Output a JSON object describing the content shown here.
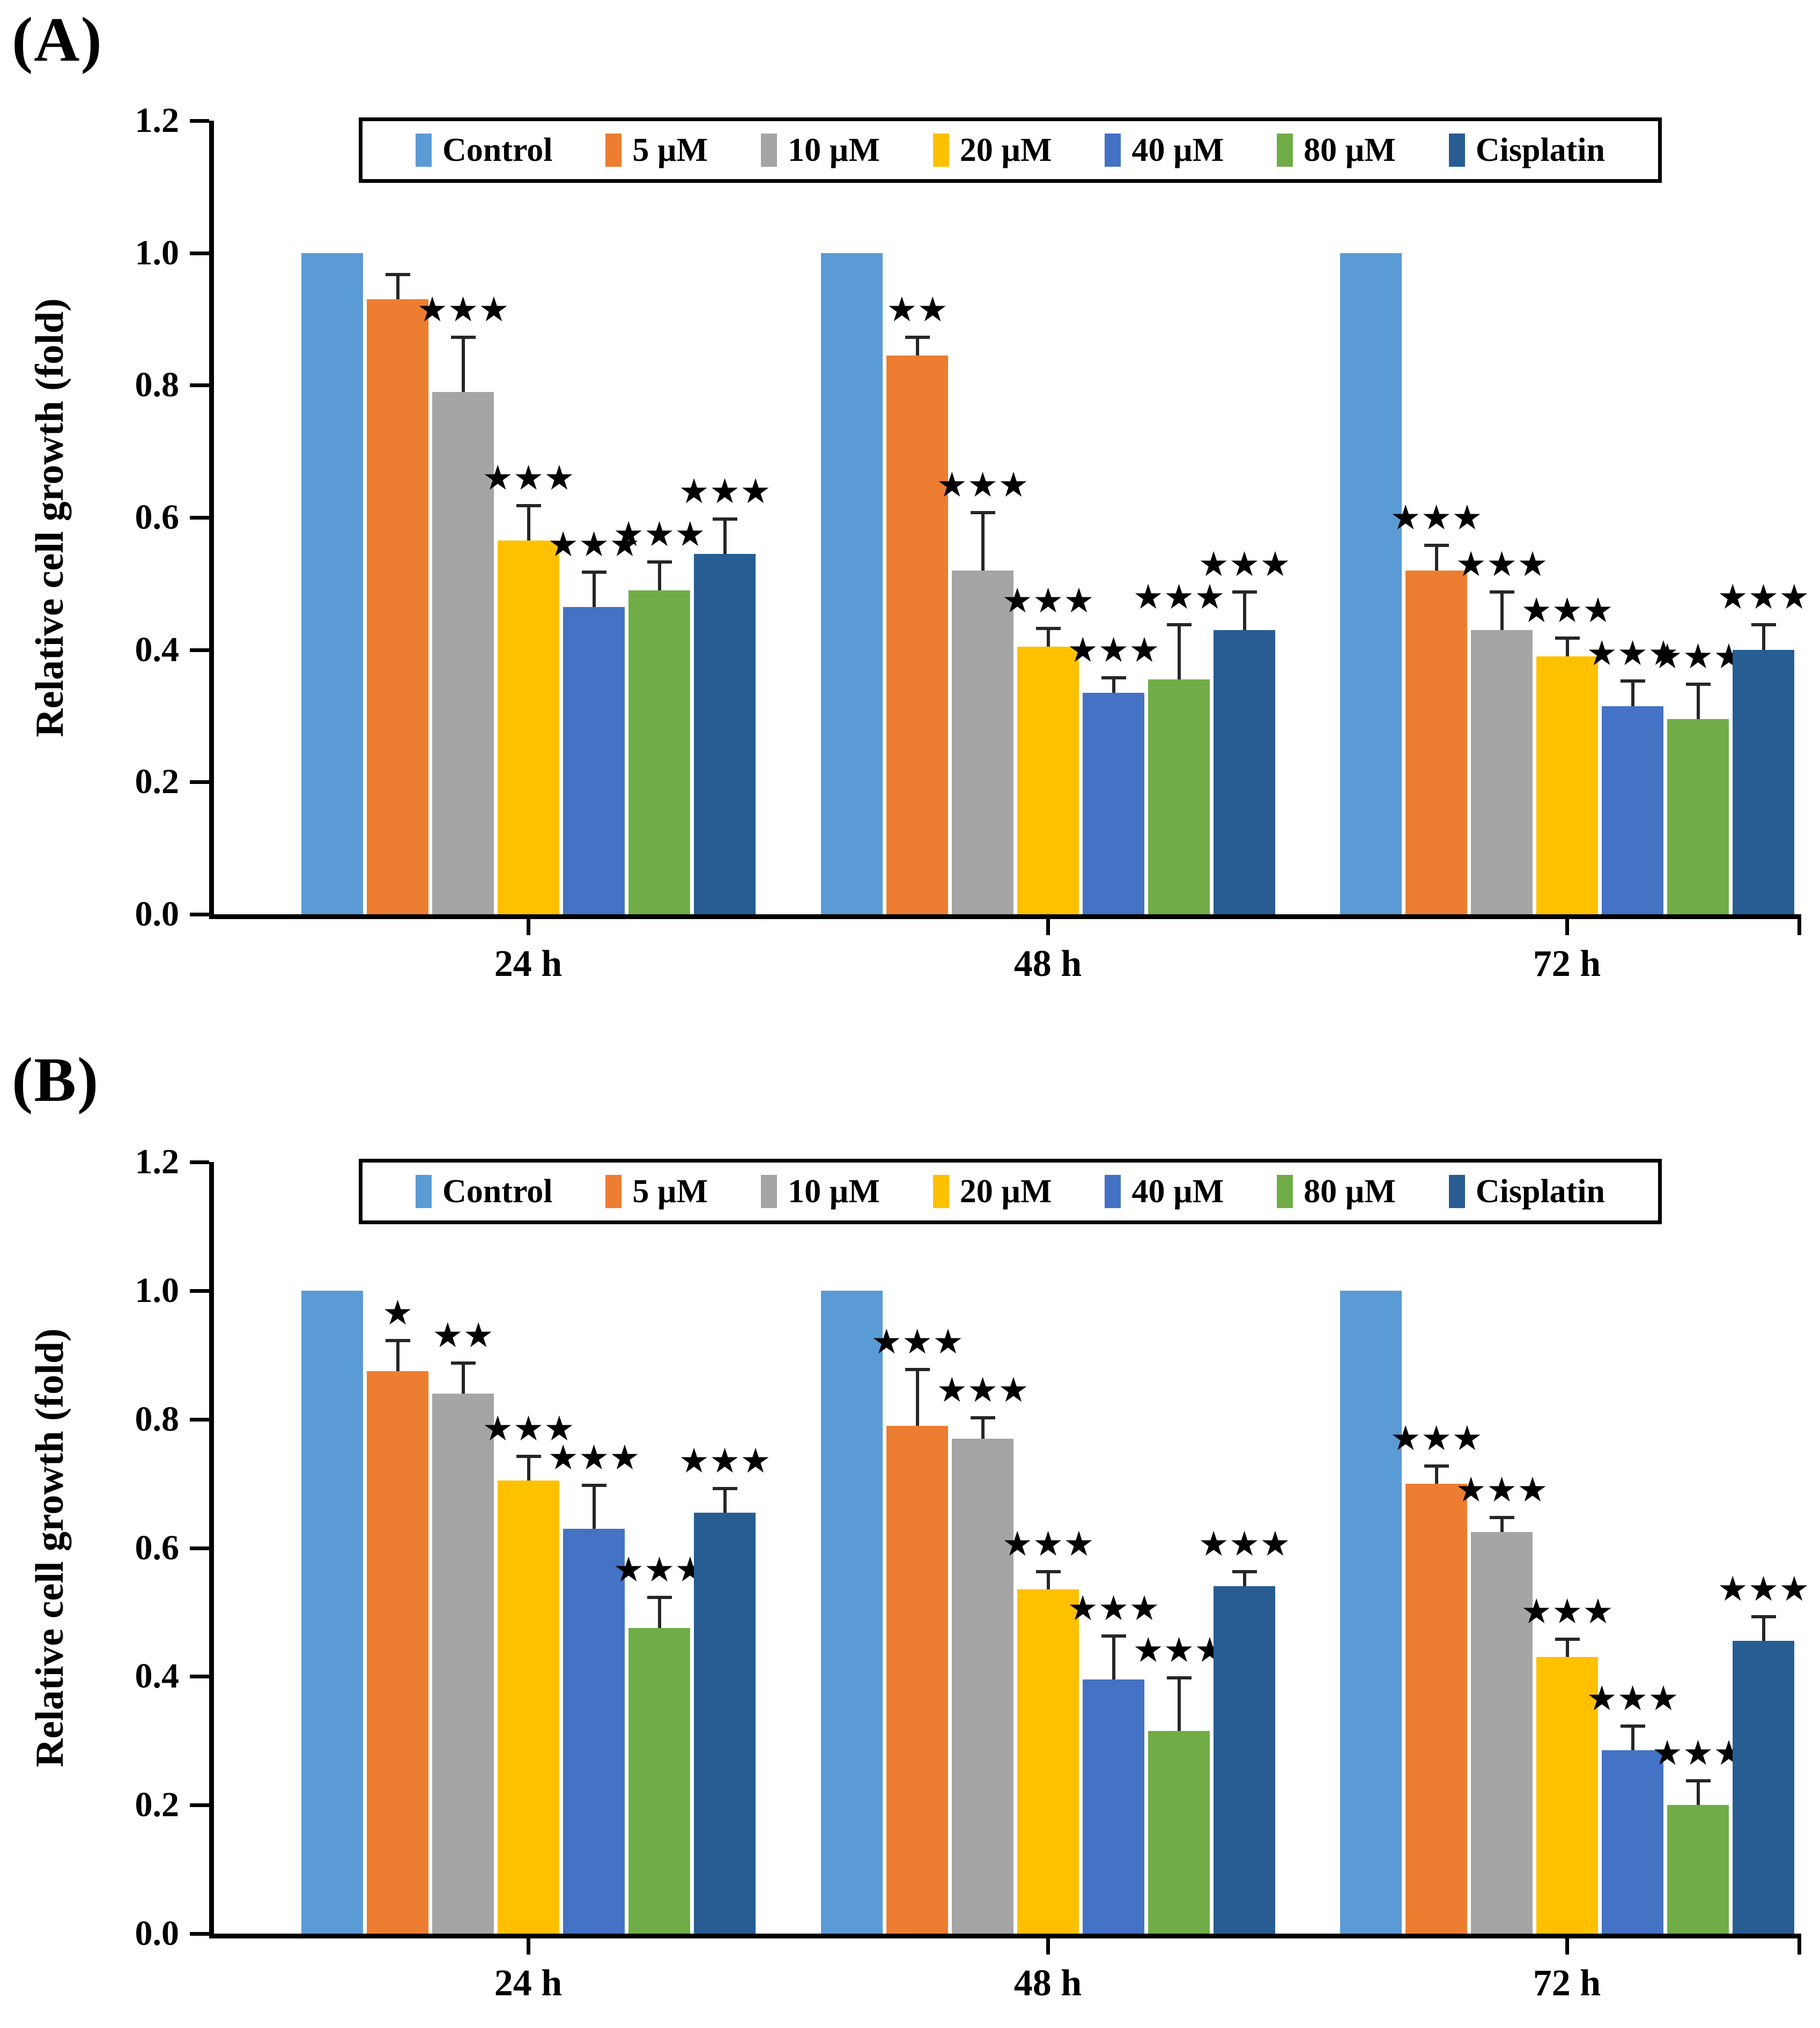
{
  "sig_symbol": "★",
  "chart_data": [
    {
      "type": "bar",
      "panel_label": "(A)",
      "title": "",
      "xlabel": "",
      "ylabel": "Relative cell growth (fold)",
      "ylim": [
        0.0,
        1.2
      ],
      "yticks": [
        "0.0",
        "0.2",
        "0.4",
        "0.6",
        "0.8",
        "1.0",
        "1.2"
      ],
      "grid": "off",
      "legend_position": "top-inside",
      "categories": [
        "24 h",
        "48 h",
        "72 h"
      ],
      "series": [
        {
          "name": "Control",
          "color": "#5B9BD5",
          "values": [
            1.0,
            1.0,
            1.0
          ],
          "errors": [
            0,
            0,
            0
          ],
          "sig": [
            "",
            "",
            ""
          ]
        },
        {
          "name": "5 µM",
          "color": "#ED7D31",
          "values": [
            0.93,
            0.845,
            0.52
          ],
          "errors": [
            0.04,
            0.03,
            0.04
          ],
          "sig": [
            "",
            "★★",
            "★★★"
          ]
        },
        {
          "name": "10 µM",
          "color": "#A5A5A5",
          "pattern": "dots",
          "values": [
            0.79,
            0.52,
            0.43
          ],
          "errors": [
            0.085,
            0.09,
            0.06
          ],
          "sig": [
            "★★★",
            "★★★",
            "★★★"
          ]
        },
        {
          "name": "20 µM",
          "color": "#FFC000",
          "values": [
            0.565,
            0.405,
            0.39
          ],
          "errors": [
            0.055,
            0.03,
            0.03
          ],
          "sig": [
            "★★★",
            "★★★",
            "★★★"
          ]
        },
        {
          "name": "40 µM",
          "color": "#4472C4",
          "values": [
            0.465,
            0.335,
            0.315
          ],
          "errors": [
            0.055,
            0.025,
            0.04
          ],
          "sig": [
            "★★★",
            "★★★",
            "★★★"
          ]
        },
        {
          "name": "80 µM",
          "color": "#70AD47",
          "values": [
            0.49,
            0.355,
            0.295
          ],
          "errors": [
            0.045,
            0.085,
            0.055
          ],
          "sig": [
            "★★★",
            "★★★",
            "★★★"
          ]
        },
        {
          "name": "Cisplatin",
          "color": "#275D92",
          "values": [
            0.545,
            0.43,
            0.4
          ],
          "errors": [
            0.055,
            0.06,
            0.04
          ],
          "sig": [
            "★★★",
            "★★★",
            "★★★"
          ]
        }
      ]
    },
    {
      "type": "bar",
      "panel_label": "(B)",
      "title": "",
      "xlabel": "",
      "ylabel": "Relative cell growth (fold)",
      "ylim": [
        0.0,
        1.2
      ],
      "yticks": [
        "0.0",
        "0.2",
        "0.4",
        "0.6",
        "0.8",
        "1.0",
        "1.2"
      ],
      "grid": "off",
      "legend_position": "top-inside",
      "categories": [
        "24 h",
        "48 h",
        "72 h"
      ],
      "series": [
        {
          "name": "Control",
          "color": "#5B9BD5",
          "values": [
            1.0,
            1.0,
            1.0
          ],
          "errors": [
            0,
            0,
            0
          ],
          "sig": [
            "",
            "",
            ""
          ]
        },
        {
          "name": "5 µM",
          "color": "#ED7D31",
          "values": [
            0.875,
            0.79,
            0.7
          ],
          "errors": [
            0.05,
            0.09,
            0.03
          ],
          "sig": [
            "★",
            "★★★",
            "★★★"
          ]
        },
        {
          "name": "10 µM",
          "color": "#A5A5A5",
          "pattern": "dots",
          "values": [
            0.84,
            0.77,
            0.625
          ],
          "errors": [
            0.05,
            0.035,
            0.025
          ],
          "sig": [
            "★★",
            "★★★",
            "★★★"
          ]
        },
        {
          "name": "20 µM",
          "color": "#FFC000",
          "values": [
            0.705,
            0.535,
            0.43
          ],
          "errors": [
            0.04,
            0.03,
            0.03
          ],
          "sig": [
            "★★★",
            "★★★",
            "★★★"
          ]
        },
        {
          "name": "40 µM",
          "color": "#4472C4",
          "values": [
            0.63,
            0.395,
            0.285
          ],
          "errors": [
            0.07,
            0.07,
            0.04
          ],
          "sig": [
            "★★★",
            "★★★",
            "★★★"
          ]
        },
        {
          "name": "80 µM",
          "color": "#70AD47",
          "values": [
            0.475,
            0.315,
            0.2
          ],
          "errors": [
            0.05,
            0.085,
            0.04
          ],
          "sig": [
            "★★★",
            "★★★",
            "★★★"
          ]
        },
        {
          "name": "Cisplatin",
          "color": "#275D92",
          "values": [
            0.655,
            0.54,
            0.455
          ],
          "errors": [
            0.04,
            0.025,
            0.04
          ],
          "sig": [
            "★★★",
            "★★★",
            "★★★"
          ]
        }
      ]
    }
  ]
}
